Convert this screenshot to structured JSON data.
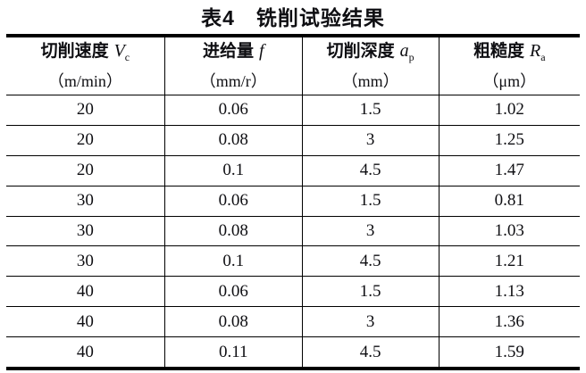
{
  "title": "表4　铣削试验结果",
  "table": {
    "columns": [
      {
        "label": "切削速度",
        "symbol": "V",
        "subscript": "c",
        "unit": "（m/min）"
      },
      {
        "label": "进给量",
        "symbol": "f",
        "subscript": "",
        "unit": "（mm/r）"
      },
      {
        "label": "切削深度",
        "symbol": "a",
        "subscript": "p",
        "unit": "（mm）"
      },
      {
        "label": "粗糙度",
        "symbol": "R",
        "subscript": "a",
        "unit": "（μm）"
      }
    ],
    "rows": [
      [
        "20",
        "0.06",
        "1.5",
        "1.02"
      ],
      [
        "20",
        "0.08",
        "3",
        "1.25"
      ],
      [
        "20",
        "0.1",
        "4.5",
        "1.47"
      ],
      [
        "30",
        "0.06",
        "1.5",
        "0.81"
      ],
      [
        "30",
        "0.08",
        "3",
        "1.03"
      ],
      [
        "30",
        "0.1",
        "4.5",
        "1.21"
      ],
      [
        "40",
        "0.06",
        "1.5",
        "1.13"
      ],
      [
        "40",
        "0.08",
        "3",
        "1.36"
      ],
      [
        "40",
        "0.11",
        "4.5",
        "1.59"
      ]
    ]
  }
}
